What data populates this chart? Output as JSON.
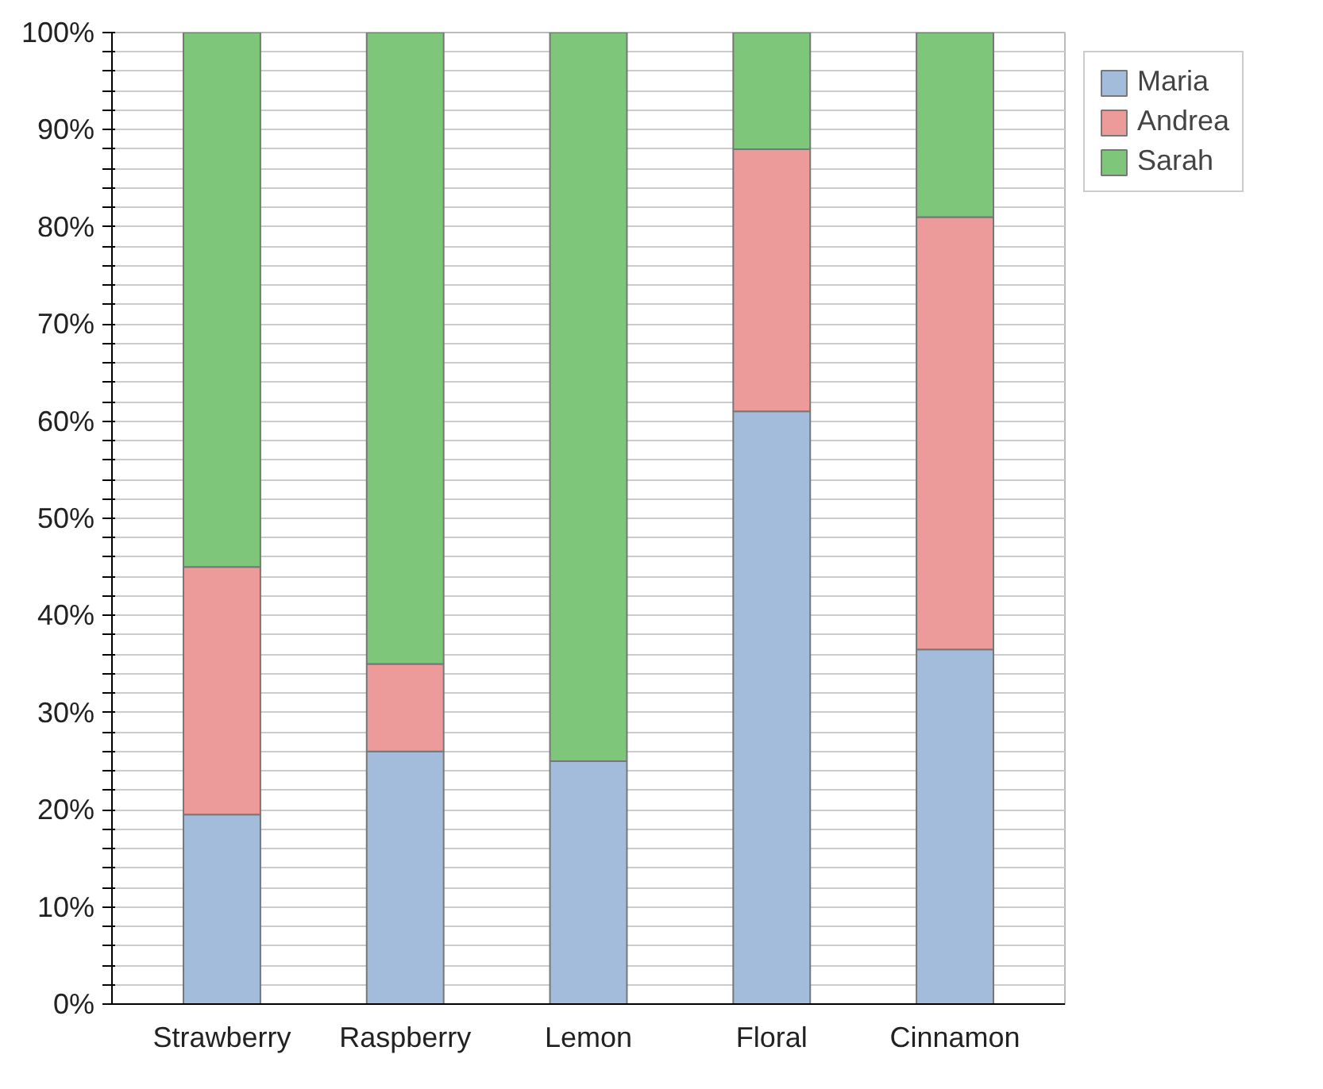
{
  "chart_data": {
    "type": "bar",
    "stacked": true,
    "categories": [
      "Strawberry",
      "Raspberry",
      "Lemon",
      "Floral",
      "Cinnamon"
    ],
    "series": [
      {
        "name": "Maria",
        "color": "#a4bcdb",
        "values": [
          19.5,
          26,
          25,
          61,
          36.5
        ]
      },
      {
        "name": "Andrea",
        "color": "#ec9a9a",
        "values": [
          25.5,
          9,
          0,
          27,
          44.5
        ]
      },
      {
        "name": "Sarah",
        "color": "#7dc67a",
        "values": [
          55,
          65,
          75,
          12,
          19
        ]
      }
    ],
    "ylim": [
      0,
      100
    ],
    "yticks": [
      {
        "value": 0,
        "label": "0%"
      },
      {
        "value": 2,
        "label": null
      },
      {
        "value": 4,
        "label": null
      },
      {
        "value": 6,
        "label": null
      },
      {
        "value": 8,
        "label": null
      },
      {
        "value": 10,
        "label": "10%"
      },
      {
        "value": 12,
        "label": null
      },
      {
        "value": 14,
        "label": null
      },
      {
        "value": 16,
        "label": null
      },
      {
        "value": 18,
        "label": null
      },
      {
        "value": 20,
        "label": "20%"
      },
      {
        "value": 22,
        "label": null
      },
      {
        "value": 24,
        "label": null
      },
      {
        "value": 26,
        "label": null
      },
      {
        "value": 28,
        "label": null
      },
      {
        "value": 30,
        "label": "30%"
      },
      {
        "value": 32,
        "label": null
      },
      {
        "value": 34,
        "label": null
      },
      {
        "value": 36,
        "label": null
      },
      {
        "value": 38,
        "label": null
      },
      {
        "value": 40,
        "label": "40%"
      },
      {
        "value": 42,
        "label": null
      },
      {
        "value": 44,
        "label": null
      },
      {
        "value": 46,
        "label": null
      },
      {
        "value": 48,
        "label": null
      },
      {
        "value": 50,
        "label": "50%"
      },
      {
        "value": 52,
        "label": null
      },
      {
        "value": 54,
        "label": null
      },
      {
        "value": 56,
        "label": null
      },
      {
        "value": 58,
        "label": null
      },
      {
        "value": 60,
        "label": "60%"
      },
      {
        "value": 62,
        "label": null
      },
      {
        "value": 64,
        "label": null
      },
      {
        "value": 66,
        "label": null
      },
      {
        "value": 68,
        "label": null
      },
      {
        "value": 70,
        "label": "70%"
      },
      {
        "value": 72,
        "label": null
      },
      {
        "value": 74,
        "label": null
      },
      {
        "value": 76,
        "label": null
      },
      {
        "value": 78,
        "label": null
      },
      {
        "value": 80,
        "label": "80%"
      },
      {
        "value": 82,
        "label": null
      },
      {
        "value": 84,
        "label": null
      },
      {
        "value": 86,
        "label": null
      },
      {
        "value": 88,
        "label": null
      },
      {
        "value": 90,
        "label": "90%"
      },
      {
        "value": 92,
        "label": null
      },
      {
        "value": 94,
        "label": null
      },
      {
        "value": 96,
        "label": null
      },
      {
        "value": 98,
        "label": null
      },
      {
        "value": 100,
        "label": "100%"
      }
    ],
    "grid": "y",
    "legend": "top right"
  }
}
